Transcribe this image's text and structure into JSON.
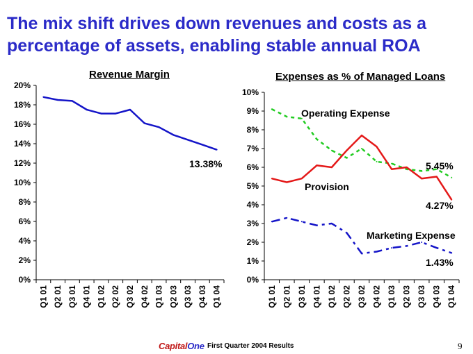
{
  "slide": {
    "title": "The mix shift drives down revenues and costs as a percentage of assets, enabling stable annual ROA",
    "page_number": "9"
  },
  "footer": {
    "logo_text": "Capital",
    "logo_suffix": "One",
    "text": "First Quarter 2004 Results"
  },
  "colors": {
    "title": "#2b2bc8",
    "revenue": "#1414c8",
    "operating": "#22cc22",
    "provision": "#e41818",
    "marketing": "#1414c8"
  },
  "chart_data": [
    {
      "type": "line",
      "title": "Revenue Margin",
      "categories": [
        "Q1 01",
        "Q2 01",
        "Q3 01",
        "Q4 01",
        "Q1 02",
        "Q2 02",
        "Q3 02",
        "Q4 02",
        "Q1 03",
        "Q2 03",
        "Q3 03",
        "Q4 03",
        "Q1 04"
      ],
      "series": [
        {
          "name": "Revenue Margin",
          "values": [
            18.8,
            18.5,
            18.4,
            17.5,
            17.1,
            17.1,
            17.5,
            16.1,
            15.7,
            14.9,
            14.4,
            13.9,
            13.38
          ]
        }
      ],
      "ylim": [
        0,
        20
      ],
      "yticks": [
        "0%",
        "2%",
        "4%",
        "6%",
        "8%",
        "10%",
        "12%",
        "14%",
        "16%",
        "18%",
        "20%"
      ],
      "annotations": [
        {
          "text": "13.38%"
        }
      ]
    },
    {
      "type": "line",
      "title": "Expenses as % of Managed Loans",
      "categories": [
        "Q1 01",
        "Q2 01",
        "Q3 01",
        "Q4 01",
        "Q1 02",
        "Q2 02",
        "Q3 02",
        "Q4 02",
        "Q1 03",
        "Q2 03",
        "Q3 03",
        "Q4 03",
        "Q1 04"
      ],
      "series": [
        {
          "name": "Operating Expense",
          "values": [
            9.1,
            8.7,
            8.6,
            7.5,
            6.9,
            6.5,
            7.0,
            6.3,
            6.2,
            5.9,
            5.8,
            5.9,
            5.45
          ]
        },
        {
          "name": "Provision",
          "values": [
            5.4,
            5.2,
            5.4,
            6.1,
            6.0,
            6.9,
            7.7,
            7.1,
            5.9,
            6.0,
            5.4,
            5.5,
            4.27
          ]
        },
        {
          "name": "Marketing Expense",
          "values": [
            3.1,
            3.3,
            3.1,
            2.9,
            3.0,
            2.5,
            1.4,
            1.5,
            1.7,
            1.8,
            2.0,
            1.7,
            1.43
          ]
        }
      ],
      "ylim": [
        0,
        10
      ],
      "yticks": [
        "0%",
        "1%",
        "2%",
        "3%",
        "4%",
        "5%",
        "6%",
        "7%",
        "8%",
        "9%",
        "10%"
      ],
      "annotations": [
        {
          "text": "Operating Expense"
        },
        {
          "text": "Provision"
        },
        {
          "text": "Marketing Expense"
        },
        {
          "text": "5.45%"
        },
        {
          "text": "4.27%"
        },
        {
          "text": "1.43%"
        }
      ]
    }
  ]
}
